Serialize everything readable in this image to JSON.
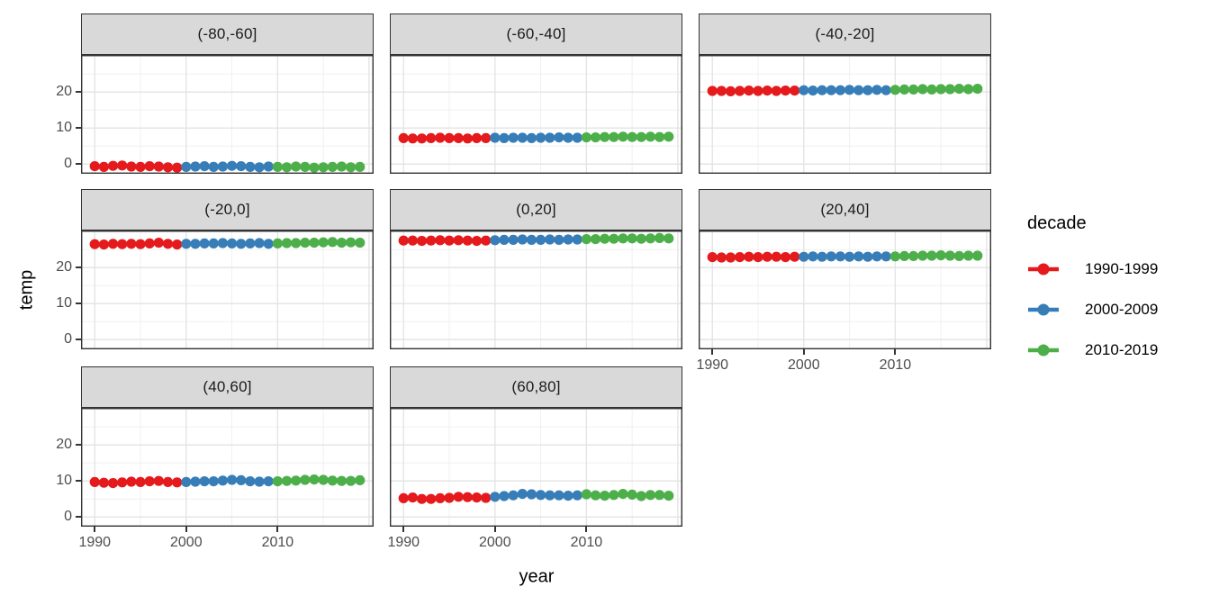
{
  "chart_data": {
    "type": "scatter",
    "title": "",
    "xlabel": "year",
    "ylabel": "temp",
    "x_ticks": [
      "1990",
      "2000",
      "2010"
    ],
    "y_ticks": [
      "0",
      "10",
      "20"
    ],
    "x_minor_ticks": [
      1995,
      2005,
      2015
    ],
    "y_minor_ticks": [
      5,
      15,
      25
    ],
    "x_major_gridlines": [
      1990,
      2000,
      2010,
      2020
    ],
    "y_major_gridlines": [
      0,
      10,
      20,
      30
    ],
    "xlim": [
      1988.5,
      2020.5
    ],
    "ylim": [
      -2.7,
      30.3
    ],
    "grid": true,
    "legend_position": "right",
    "legend": {
      "title": "decade",
      "entries": [
        {
          "label": "1990-1999",
          "color": "#E41A1C",
          "year_from": 1990,
          "year_to": 1999
        },
        {
          "label": "2000-2009",
          "color": "#377EB8",
          "year_from": 2000,
          "year_to": 2009
        },
        {
          "label": "2010-2019",
          "color": "#4DAF4A",
          "year_from": 2010,
          "year_to": 2019
        }
      ]
    },
    "years": [
      1990,
      1991,
      1992,
      1993,
      1994,
      1995,
      1996,
      1997,
      1998,
      1999,
      2000,
      2001,
      2002,
      2003,
      2004,
      2005,
      2006,
      2007,
      2008,
      2009,
      2010,
      2011,
      2012,
      2013,
      2014,
      2015,
      2016,
      2017,
      2018,
      2019
    ],
    "facets": [
      {
        "label": "(-80,-60]",
        "row": 0,
        "col": 0,
        "values": [
          -0.6,
          -0.8,
          -0.5,
          -0.4,
          -0.7,
          -0.8,
          -0.6,
          -0.7,
          -0.9,
          -1.0,
          -0.8,
          -0.7,
          -0.6,
          -0.8,
          -0.7,
          -0.5,
          -0.6,
          -0.8,
          -0.9,
          -0.7,
          -0.8,
          -0.9,
          -0.7,
          -0.8,
          -1.0,
          -0.9,
          -0.8,
          -0.7,
          -0.9,
          -0.8
        ]
      },
      {
        "label": "(-60,-40]",
        "row": 0,
        "col": 1,
        "values": [
          7.2,
          7.1,
          7.1,
          7.2,
          7.3,
          7.2,
          7.2,
          7.1,
          7.2,
          7.2,
          7.3,
          7.2,
          7.3,
          7.3,
          7.2,
          7.3,
          7.3,
          7.4,
          7.3,
          7.3,
          7.4,
          7.4,
          7.5,
          7.5,
          7.6,
          7.5,
          7.5,
          7.6,
          7.5,
          7.6
        ]
      },
      {
        "label": "(-40,-20]",
        "row": 0,
        "col": 2,
        "values": [
          20.3,
          20.3,
          20.2,
          20.3,
          20.4,
          20.3,
          20.4,
          20.3,
          20.4,
          20.4,
          20.5,
          20.4,
          20.5,
          20.5,
          20.5,
          20.6,
          20.5,
          20.5,
          20.6,
          20.5,
          20.6,
          20.7,
          20.7,
          20.8,
          20.7,
          20.8,
          20.8,
          20.9,
          20.8,
          20.9
        ]
      },
      {
        "label": "(-20,0]",
        "row": 1,
        "col": 0,
        "values": [
          26.5,
          26.4,
          26.6,
          26.5,
          26.6,
          26.5,
          26.7,
          26.9,
          26.6,
          26.4,
          26.6,
          26.6,
          26.7,
          26.7,
          26.8,
          26.7,
          26.6,
          26.7,
          26.8,
          26.6,
          26.7,
          26.8,
          26.8,
          26.9,
          26.9,
          27.0,
          27.1,
          26.9,
          27.0,
          26.9
        ]
      },
      {
        "label": "(0,20]",
        "row": 1,
        "col": 1,
        "values": [
          27.5,
          27.5,
          27.4,
          27.5,
          27.6,
          27.5,
          27.6,
          27.5,
          27.4,
          27.5,
          27.6,
          27.7,
          27.7,
          27.8,
          27.7,
          27.7,
          27.8,
          27.7,
          27.8,
          27.8,
          27.9,
          27.9,
          28.0,
          28.0,
          28.1,
          28.1,
          28.0,
          28.1,
          28.2,
          28.1
        ]
      },
      {
        "label": "(20,40]",
        "row": 1,
        "col": 2,
        "values": [
          22.9,
          22.8,
          22.8,
          22.9,
          23.0,
          22.9,
          23.0,
          23.0,
          22.9,
          23.0,
          23.0,
          23.1,
          23.0,
          23.1,
          23.1,
          23.0,
          23.1,
          23.0,
          23.1,
          23.1,
          23.1,
          23.2,
          23.2,
          23.3,
          23.3,
          23.4,
          23.3,
          23.2,
          23.3,
          23.3
        ]
      },
      {
        "label": "(40,60]",
        "row": 2,
        "col": 0,
        "values": [
          9.7,
          9.5,
          9.4,
          9.6,
          9.8,
          9.7,
          9.9,
          10.0,
          9.7,
          9.6,
          9.7,
          9.8,
          9.9,
          9.9,
          10.1,
          10.3,
          10.2,
          9.9,
          9.8,
          9.9,
          9.9,
          10.0,
          10.1,
          10.3,
          10.4,
          10.3,
          10.1,
          10.0,
          10.0,
          10.2
        ]
      },
      {
        "label": "(60,80]",
        "row": 2,
        "col": 1,
        "values": [
          5.2,
          5.4,
          5.0,
          5.0,
          5.2,
          5.3,
          5.6,
          5.5,
          5.4,
          5.3,
          5.6,
          5.8,
          6.0,
          6.4,
          6.3,
          6.1,
          6.0,
          6.0,
          5.9,
          6.0,
          6.3,
          6.0,
          5.9,
          6.1,
          6.4,
          6.2,
          5.8,
          6.1,
          6.1,
          5.9
        ]
      }
    ]
  }
}
